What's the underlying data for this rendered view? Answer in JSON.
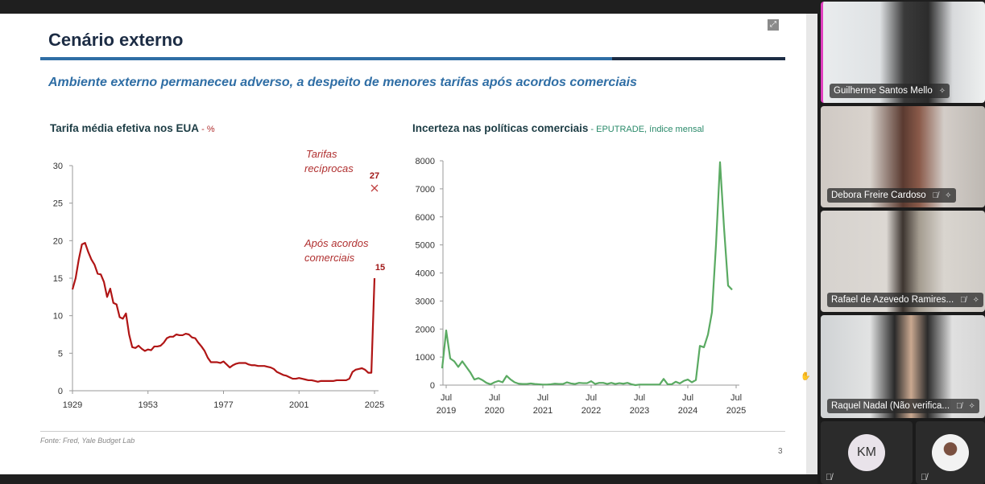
{
  "slide": {
    "title": "Cenário externo",
    "subtitle": "Ambiente externo permaneceu adverso, a despeito de menores tarifas após acordos comerciais",
    "source": "Fonte: Fred, Yale Budget Lab",
    "page_number": "3",
    "colors": {
      "title": "#1c2c44",
      "accent": "#2f6ea5",
      "tariff_line": "#b01515",
      "uncertainty_line": "#5aaa62"
    }
  },
  "chart_data": [
    {
      "type": "line",
      "title": "Tarifa média efetiva nos EUA",
      "title_suffix": " - %",
      "xlabel": "",
      "ylabel": "",
      "xlim": [
        1929,
        2025
      ],
      "ylim": [
        0,
        30
      ],
      "x_ticks": [
        "1929",
        "1953",
        "1977",
        "2001",
        "2025"
      ],
      "y_ticks": [
        "0",
        "5",
        "10",
        "15",
        "20",
        "25",
        "30"
      ],
      "x": [
        1929,
        1930,
        1931,
        1932,
        1933,
        1934,
        1935,
        1936,
        1937,
        1938,
        1939,
        1940,
        1941,
        1942,
        1943,
        1944,
        1945,
        1946,
        1947,
        1948,
        1949,
        1950,
        1951,
        1952,
        1953,
        1954,
        1955,
        1956,
        1957,
        1958,
        1959,
        1960,
        1961,
        1962,
        1963,
        1964,
        1965,
        1966,
        1967,
        1968,
        1969,
        1970,
        1971,
        1972,
        1973,
        1974,
        1975,
        1976,
        1977,
        1978,
        1979,
        1980,
        1981,
        1982,
        1983,
        1984,
        1985,
        1986,
        1987,
        1988,
        1989,
        1990,
        1991,
        1992,
        1993,
        1994,
        1995,
        1996,
        1997,
        1998,
        1999,
        2000,
        2001,
        2002,
        2003,
        2004,
        2005,
        2006,
        2007,
        2008,
        2009,
        2010,
        2011,
        2012,
        2013,
        2014,
        2015,
        2016,
        2017,
        2018,
        2019,
        2020,
        2021,
        2022,
        2023,
        2024,
        2025
      ],
      "values": [
        13.5,
        15,
        17.5,
        19.5,
        19.7,
        18.5,
        17.5,
        16.8,
        15.6,
        15.5,
        14.5,
        12.5,
        13.6,
        11.7,
        11.5,
        9.8,
        9.6,
        10.3,
        7.5,
        5.8,
        5.7,
        6.0,
        5.6,
        5.3,
        5.5,
        5.4,
        5.9,
        5.9,
        6.0,
        6.4,
        7.0,
        7.2,
        7.2,
        7.5,
        7.4,
        7.4,
        7.6,
        7.5,
        7.1,
        7.0,
        6.4,
        5.9,
        5.3,
        4.4,
        3.8,
        3.8,
        3.8,
        3.7,
        3.9,
        3.5,
        3.1,
        3.4,
        3.6,
        3.7,
        3.7,
        3.7,
        3.5,
        3.4,
        3.4,
        3.3,
        3.3,
        3.3,
        3.2,
        3.1,
        2.9,
        2.5,
        2.3,
        2.1,
        2.0,
        1.8,
        1.6,
        1.6,
        1.7,
        1.6,
        1.5,
        1.4,
        1.4,
        1.3,
        1.2,
        1.3,
        1.3,
        1.3,
        1.3,
        1.3,
        1.4,
        1.4,
        1.4,
        1.4,
        1.6,
        2.5,
        2.8,
        2.9,
        3.0,
        2.8,
        2.4,
        2.4,
        15
      ],
      "annotations": [
        {
          "text": "Tarifas recíprocas",
          "x": 2025,
          "y": 27,
          "value_label": "27",
          "marker": "x"
        },
        {
          "text": "Após acordos comerciais",
          "x": 2025,
          "y": 15,
          "value_label": "15"
        }
      ]
    },
    {
      "type": "line",
      "title": "Incerteza nas políticas comerciais",
      "title_suffix": " - EPUTRADE, índice mensal",
      "xlabel": "",
      "ylabel": "",
      "ylim": [
        0,
        8000
      ],
      "x_start": "2019-06",
      "frequency": "monthly",
      "x_ticks": [
        [
          "Jul",
          "2019"
        ],
        [
          "Jul",
          "2020"
        ],
        [
          "Jul",
          "2021"
        ],
        [
          "Jul",
          "2022"
        ],
        [
          "Jul",
          "2023"
        ],
        [
          "Jul",
          "2024"
        ],
        [
          "Jul",
          "2025"
        ]
      ],
      "y_ticks": [
        "0",
        "1000",
        "2000",
        "3000",
        "4000",
        "5000",
        "6000",
        "7000",
        "8000"
      ],
      "values": [
        600,
        1950,
        950,
        850,
        650,
        850,
        650,
        450,
        200,
        250,
        180,
        80,
        30,
        100,
        150,
        100,
        330,
        200,
        100,
        50,
        40,
        40,
        60,
        40,
        30,
        20,
        20,
        30,
        50,
        40,
        40,
        100,
        60,
        40,
        80,
        70,
        70,
        140,
        40,
        80,
        80,
        40,
        80,
        40,
        70,
        50,
        80,
        30,
        0,
        20,
        20,
        20,
        20,
        20,
        20,
        220,
        30,
        30,
        120,
        60,
        150,
        200,
        100,
        180,
        1400,
        1350,
        1800,
        2600,
        5000,
        7950,
        5600,
        3550,
        3400
      ]
    }
  ],
  "participants": [
    {
      "name": "Guilherme Santos Mello",
      "muted": false
    },
    {
      "name": "Debora Freire Cardoso",
      "muted": true
    },
    {
      "name": "Rafael de Azevedo Ramires...",
      "muted": true
    },
    {
      "name": "Raquel Nadal (Não verifica...",
      "muted": true
    },
    {
      "initials": "KM",
      "muted": true
    },
    {
      "muted": true
    }
  ]
}
